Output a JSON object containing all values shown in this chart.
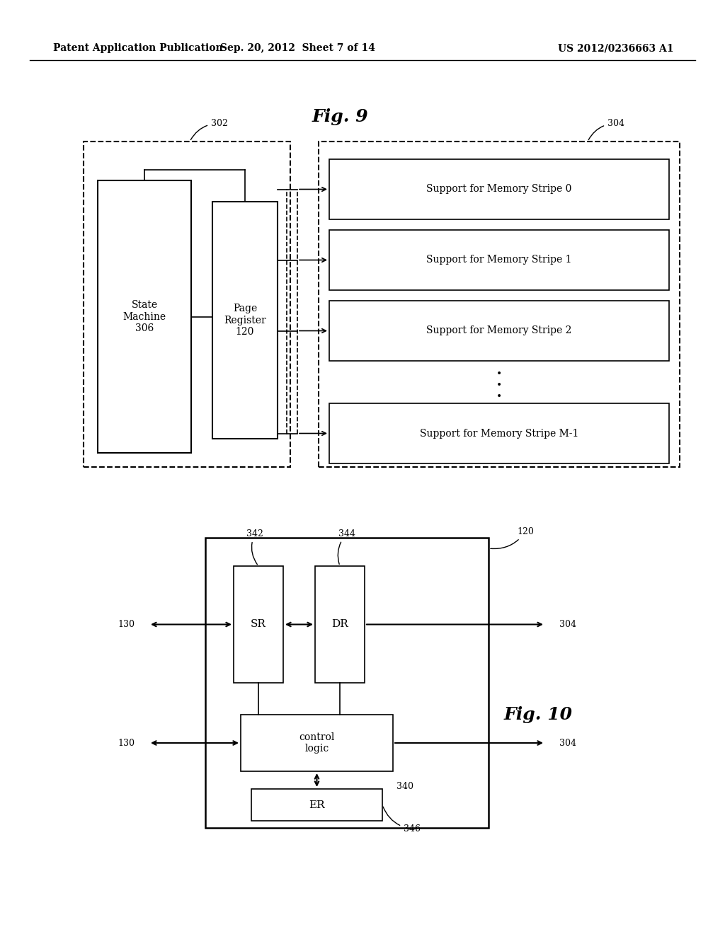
{
  "bg_color": "#ffffff",
  "header_left": "Patent Application Publication",
  "header_mid": "Sep. 20, 2012  Sheet 7 of 14",
  "header_right": "US 2012/0236663 A1",
  "fig9_title": "Fig. 9",
  "fig10_title": "Fig. 10",
  "fig9_label_302": "302",
  "fig9_label_304": "304",
  "fig9_state_machine": "State\nMachine\n306",
  "fig9_page_register": "Page\nRegister\n120",
  "fig9_stripes": [
    "Support for Memory Stripe 0",
    "Support for Memory Stripe 1",
    "Support for Memory Stripe 2",
    "Support for Memory Stripe M-1"
  ],
  "fig10_label_342": "342",
  "fig10_label_344": "344",
  "fig10_label_120": "120",
  "fig10_label_SR": "SR",
  "fig10_label_DR": "DR",
  "fig10_label_130a": "130",
  "fig10_label_304a": "304",
  "fig10_label_130b": "130",
  "fig10_label_304b": "304",
  "fig10_control": "control\nlogic",
  "fig10_label_340": "340",
  "fig10_label_ER": "ER",
  "fig10_label_346": "346"
}
